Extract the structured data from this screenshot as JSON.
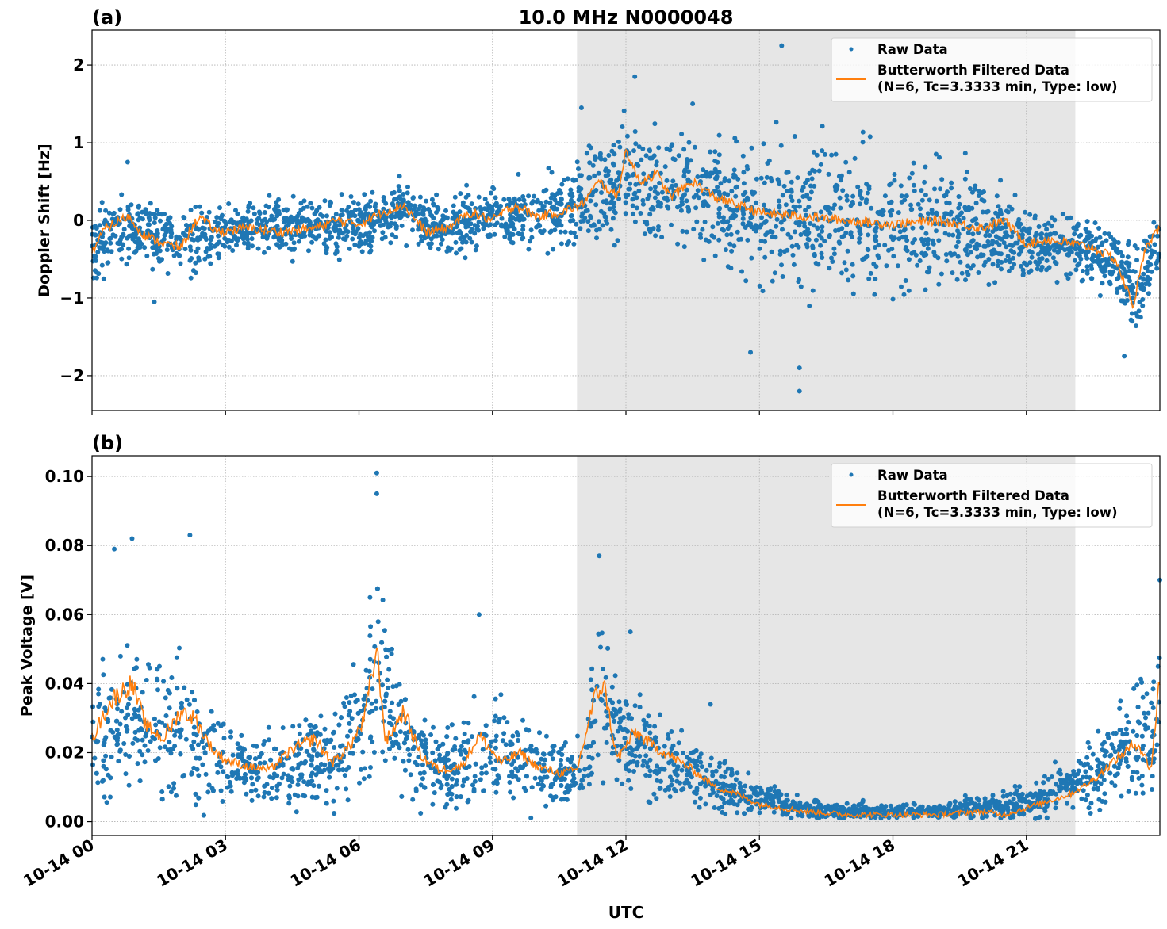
{
  "figure": {
    "title": "10.0 MHz N0000048",
    "xlabel": "UTC",
    "x_tick_labels": [
      "10-14 00",
      "10-14 03",
      "10-14 06",
      "10-14 09",
      "10-14 12",
      "10-14 15",
      "10-14 18",
      "10-14 21"
    ],
    "colors": {
      "raw": "#1f77b4",
      "filtered": "#ff7f0e",
      "night_shade": "#e6e6e6",
      "grid": "#b0b0b0"
    }
  },
  "chart_data": [
    {
      "type": "scatter",
      "panel_label": "(a)",
      "title": "10.0 MHz N0000048",
      "xlabel": "",
      "ylabel": "Doppler Shift [Hz]",
      "x_units": "hours UTC on 10-14",
      "xlim": [
        0,
        24
      ],
      "ylim": [
        -2.45,
        2.45
      ],
      "y_ticks": [
        2,
        1,
        0,
        -1,
        -2
      ],
      "y_tick_labels": [
        "2",
        "1",
        "0",
        "−1",
        "−2"
      ],
      "grid": true,
      "shaded_region_hours": [
        10.9,
        22.1
      ],
      "legend": {
        "position": "top-right",
        "entries": [
          "Raw Data",
          "Butterworth Filtered Data\n(N=6, Tc=3.3333 min, Type: low)"
        ]
      },
      "series": [
        {
          "name": "Butterworth Filtered Data",
          "kind": "line",
          "x": [
            0,
            0.3,
            0.8,
            1.2,
            1.6,
            2.0,
            2.4,
            2.8,
            3.5,
            4.2,
            5.0,
            5.5,
            6.0,
            6.5,
            7.0,
            7.5,
            8.0,
            8.5,
            9.0,
            9.5,
            10.0,
            10.5,
            11.0,
            11.4,
            11.8,
            12.0,
            12.3,
            12.7,
            13.0,
            13.5,
            14.0,
            14.5,
            15.0,
            16.0,
            17.0,
            18.0,
            19.0,
            20.0,
            20.5,
            21.0,
            21.5,
            22.0,
            22.5,
            23.0,
            23.4,
            23.7,
            24.0
          ],
          "y": [
            -0.4,
            -0.1,
            0.05,
            -0.2,
            -0.3,
            -0.35,
            0.05,
            -0.15,
            -0.1,
            -0.15,
            -0.1,
            0.0,
            -0.05,
            0.1,
            0.2,
            -0.15,
            -0.1,
            0.1,
            0.0,
            0.2,
            0.05,
            0.1,
            0.2,
            0.5,
            0.3,
            0.9,
            0.5,
            0.6,
            0.3,
            0.5,
            0.3,
            0.2,
            0.1,
            0.05,
            0.0,
            -0.05,
            0.0,
            -0.1,
            0.0,
            -0.3,
            -0.25,
            -0.3,
            -0.35,
            -0.5,
            -1.1,
            -0.3,
            -0.1
          ]
        },
        {
          "name": "Raw Data",
          "kind": "scatter",
          "band_center_x": [
            0,
            1,
            2,
            3,
            4,
            5,
            6,
            7,
            8,
            9,
            10,
            11,
            12,
            13,
            14,
            15,
            16,
            17,
            18,
            19,
            20,
            21,
            22,
            23,
            23.5,
            24
          ],
          "band_center_y": [
            -0.3,
            -0.1,
            -0.3,
            -0.15,
            -0.1,
            -0.1,
            -0.05,
            0.1,
            -0.1,
            0.1,
            0.05,
            0.2,
            0.5,
            0.4,
            0.3,
            0.1,
            0.0,
            0.0,
            -0.05,
            -0.05,
            -0.1,
            -0.3,
            -0.3,
            -0.5,
            -1.0,
            -0.2
          ],
          "band_halfwidth": [
            0.4,
            0.35,
            0.4,
            0.3,
            0.3,
            0.3,
            0.3,
            0.3,
            0.3,
            0.35,
            0.4,
            0.5,
            0.6,
            0.6,
            0.7,
            0.8,
            0.8,
            0.75,
            0.7,
            0.7,
            0.6,
            0.4,
            0.35,
            0.4,
            0.5,
            0.4
          ],
          "notable_extremes": {
            "max": 2.25,
            "min": -2.2
          }
        }
      ]
    },
    {
      "type": "scatter",
      "panel_label": "(b)",
      "xlabel": "UTC",
      "ylabel": "Peak Voltage [V]",
      "x_units": "hours UTC on 10-14",
      "xlim": [
        0,
        24
      ],
      "ylim": [
        -0.004,
        0.106
      ],
      "y_ticks": [
        0.1,
        0.08,
        0.06,
        0.04,
        0.02,
        0.0
      ],
      "y_tick_labels": [
        "0.10",
        "0.08",
        "0.06",
        "0.04",
        "0.02",
        "0.00"
      ],
      "grid": true,
      "shaded_region_hours": [
        10.9,
        22.1
      ],
      "legend": {
        "position": "top-right",
        "entries": [
          "Raw Data",
          "Butterworth Filtered Data\n(N=6, Tc=3.3333 min, Type: low)"
        ]
      },
      "series": [
        {
          "name": "Butterworth Filtered Data",
          "kind": "line",
          "x": [
            0,
            0.3,
            0.5,
            0.9,
            1.2,
            1.6,
            2.0,
            2.3,
            2.7,
            3.0,
            3.5,
            4.0,
            4.5,
            5.0,
            5.4,
            5.8,
            6.1,
            6.4,
            6.6,
            7.0,
            7.4,
            7.8,
            8.3,
            8.7,
            9.2,
            9.6,
            10.0,
            10.5,
            10.9,
            11.3,
            11.5,
            11.8,
            12.2,
            12.6,
            13.0,
            13.5,
            14.0,
            14.5,
            15.0,
            16.0,
            17.0,
            18.0,
            19.0,
            20.0,
            20.5,
            21.0,
            21.5,
            22.0,
            22.5,
            23.0,
            23.5,
            23.8,
            24.0
          ],
          "y": [
            0.024,
            0.032,
            0.036,
            0.04,
            0.028,
            0.024,
            0.032,
            0.03,
            0.021,
            0.018,
            0.016,
            0.015,
            0.021,
            0.024,
            0.017,
            0.022,
            0.029,
            0.05,
            0.023,
            0.032,
            0.019,
            0.015,
            0.016,
            0.025,
            0.017,
            0.02,
            0.016,
            0.014,
            0.015,
            0.036,
            0.04,
            0.018,
            0.026,
            0.022,
            0.019,
            0.015,
            0.01,
            0.008,
            0.005,
            0.003,
            0.002,
            0.002,
            0.002,
            0.003,
            0.002,
            0.004,
            0.006,
            0.008,
            0.012,
            0.018,
            0.023,
            0.015,
            0.042
          ]
        },
        {
          "name": "Raw Data",
          "kind": "scatter",
          "band_center_x": [
            0,
            1,
            2,
            3,
            4,
            5,
            6,
            6.4,
            7,
            8,
            9,
            10,
            11,
            11.4,
            12,
            13,
            14,
            15,
            16,
            17,
            18,
            19,
            20,
            21,
            22,
            23,
            24
          ],
          "band_center_y": [
            0.025,
            0.03,
            0.025,
            0.018,
            0.015,
            0.018,
            0.025,
            0.045,
            0.022,
            0.015,
            0.02,
            0.016,
            0.014,
            0.04,
            0.022,
            0.017,
            0.011,
            0.007,
            0.004,
            0.003,
            0.003,
            0.003,
            0.004,
            0.006,
            0.01,
            0.018,
            0.03
          ],
          "band_halfwidth": [
            0.015,
            0.02,
            0.018,
            0.01,
            0.01,
            0.012,
            0.015,
            0.025,
            0.014,
            0.01,
            0.012,
            0.01,
            0.008,
            0.018,
            0.012,
            0.01,
            0.007,
            0.004,
            0.003,
            0.002,
            0.002,
            0.002,
            0.003,
            0.004,
            0.006,
            0.012,
            0.02
          ],
          "notable_extremes": {
            "max": 0.101,
            "min": 0.001
          }
        }
      ]
    }
  ]
}
